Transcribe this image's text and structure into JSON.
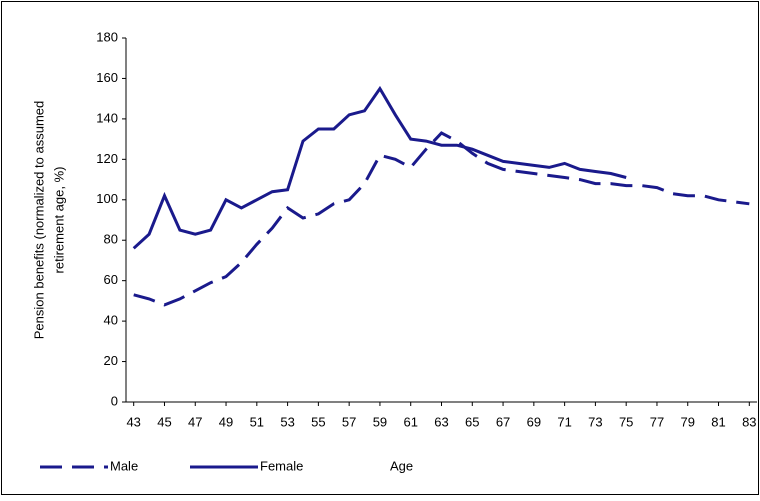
{
  "chart_data": {
    "type": "line",
    "y_label": [
      "Pension benefits (normalized to assumed",
      "retirement age, %)"
    ],
    "x_label": "Age",
    "x": [
      43,
      44,
      45,
      46,
      47,
      48,
      49,
      50,
      51,
      52,
      53,
      54,
      55,
      56,
      57,
      58,
      59,
      60,
      61,
      62,
      63,
      64,
      65,
      66,
      67,
      68,
      69,
      70,
      71,
      72,
      73,
      74,
      75,
      76,
      77,
      78,
      79,
      80,
      81,
      82,
      83
    ],
    "series": [
      {
        "name": "Male",
        "color": "#1a1a8c",
        "dashed": true,
        "values": [
          53,
          51,
          48,
          51,
          55,
          59,
          62,
          69,
          78,
          86,
          96,
          91,
          93,
          98,
          100,
          108,
          122,
          120,
          116,
          125,
          133,
          129,
          123,
          118,
          115,
          114,
          113,
          112,
          111,
          110,
          108,
          108,
          107,
          107,
          106,
          103,
          102,
          102,
          100,
          99,
          98
        ]
      },
      {
        "name": "Female",
        "color": "#1a1a8c",
        "dashed": false,
        "values": [
          76,
          83,
          102,
          85,
          83,
          85,
          100,
          96,
          100,
          104,
          105,
          129,
          135,
          135,
          142,
          144,
          155,
          142,
          130,
          129,
          127,
          127,
          125,
          122,
          119,
          118,
          117,
          116,
          118,
          115,
          114,
          113,
          111,
          null,
          null,
          null,
          null,
          null,
          null,
          null,
          null
        ]
      }
    ],
    "xlim": [
      42.5,
      83.5
    ],
    "xticks": [
      43,
      45,
      47,
      49,
      51,
      53,
      55,
      57,
      59,
      61,
      63,
      65,
      67,
      69,
      71,
      73,
      75,
      77,
      79,
      81,
      83
    ],
    "ylim": [
      0,
      180
    ],
    "yticks": [
      0,
      20,
      40,
      60,
      80,
      100,
      120,
      140,
      160,
      180
    ]
  }
}
